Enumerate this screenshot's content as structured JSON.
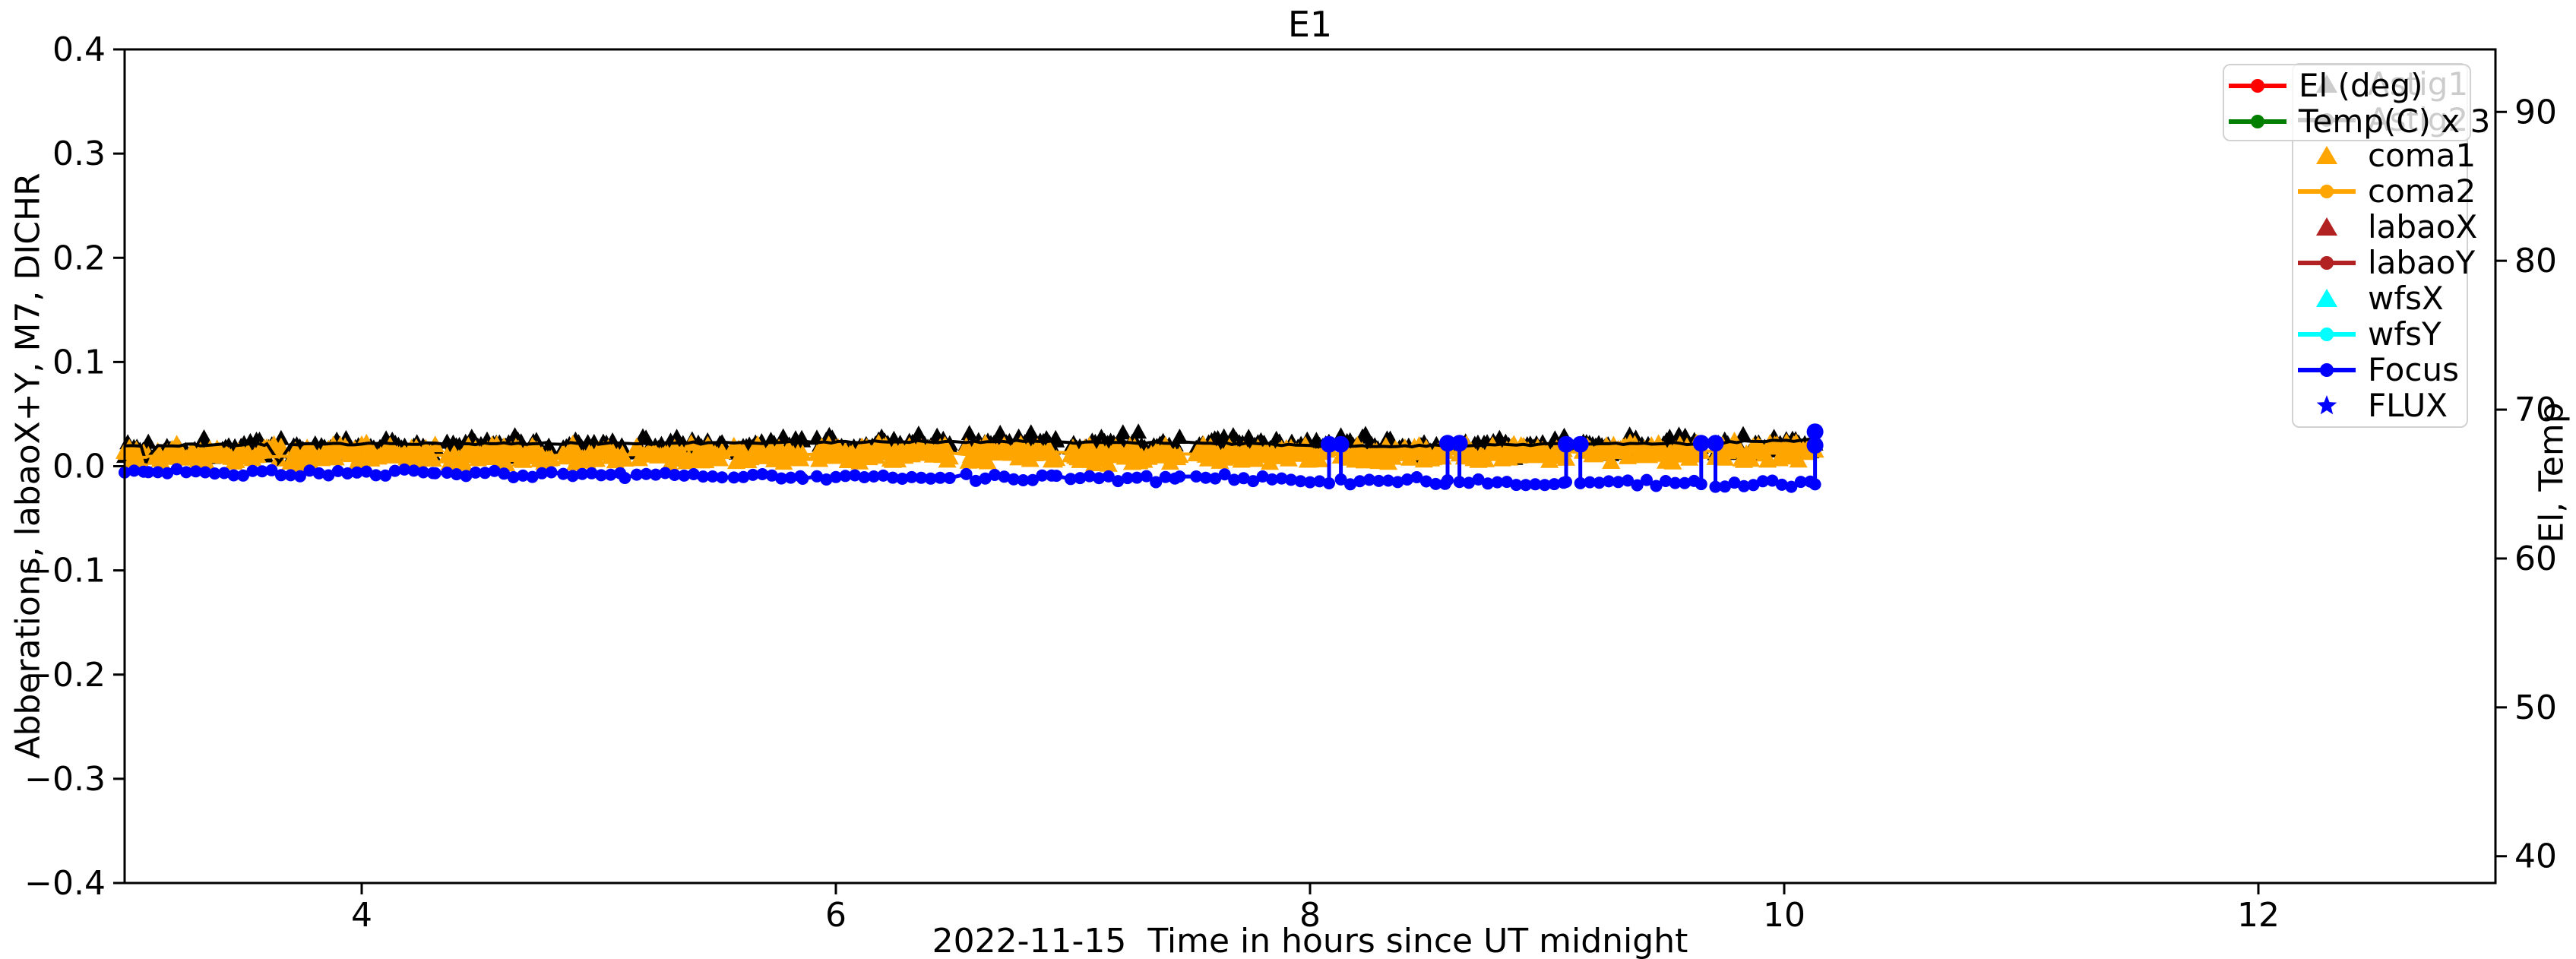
{
  "window_title": "E1",
  "chart_data": {
    "type": "line+scatter",
    "title": "E1",
    "xlabel": "2022-11-15  Time in hours since UT midnight",
    "ylabel_left": "Abberations, labaoX+Y, M7, DICHR",
    "ylabel_right": "El, Temp",
    "xlim": [
      3,
      13
    ],
    "x_ticks": [
      4,
      6,
      8,
      10,
      12
    ],
    "ylim_left": [
      -0.4,
      0.4
    ],
    "y_ticks_left": [
      -0.4,
      -0.3,
      -0.2,
      -0.1,
      0.0,
      0.1,
      0.2,
      0.3,
      0.4
    ],
    "ylim_right": [
      38.2,
      94.2
    ],
    "y_ticks_right": [
      40,
      50,
      60,
      70,
      80,
      90
    ],
    "grid": false,
    "background": "#ffffff",
    "axis_color": "#000000",
    "noise_seed": 1337,
    "data_blocks": [
      [
        3.0,
        3.1
      ],
      [
        3.14,
        3.66
      ],
      [
        3.7,
        4.31
      ],
      [
        4.36,
        4.8
      ],
      [
        4.85,
        5.11
      ],
      [
        5.16,
        5.52
      ],
      [
        5.57,
        5.86
      ],
      [
        5.92,
        6.48
      ],
      [
        6.55,
        6.93
      ],
      [
        6.99,
        7.45
      ],
      [
        7.52,
        8.08
      ],
      [
        8.13,
        8.58
      ],
      [
        8.63,
        9.08
      ],
      [
        9.14,
        9.65
      ],
      [
        9.71,
        10.13
      ]
    ],
    "series": [
      {
        "name": "Astig1",
        "color": "#000000",
        "render": "scatter-triangle",
        "marker_half": 11,
        "step": 0.013,
        "amp": 0.012,
        "anchors": [
          [
            3.0,
            0.018
          ],
          [
            4.0,
            0.019
          ],
          [
            5.0,
            0.02
          ],
          [
            6.0,
            0.021
          ],
          [
            6.9,
            0.024
          ],
          [
            7.7,
            0.021
          ],
          [
            8.6,
            0.019
          ],
          [
            9.4,
            0.021
          ],
          [
            10.13,
            0.024
          ]
        ]
      },
      {
        "name": "coma1",
        "color": "#FFA500",
        "render": "scatter-triangle",
        "marker_half": 12,
        "step": 0.01,
        "amp": 0.011,
        "anchors": [
          [
            3.0,
            0.012
          ],
          [
            4.5,
            0.013
          ],
          [
            6.0,
            0.014
          ],
          [
            7.5,
            0.013
          ],
          [
            9.0,
            0.014
          ],
          [
            10.13,
            0.016
          ]
        ]
      },
      {
        "name": "Astig2",
        "color": "#000000",
        "render": "line",
        "line_width": 4,
        "step": 0.03,
        "amp": 0.0015,
        "anchors": [
          [
            3.0,
            0.02
          ],
          [
            3.07,
            0.019
          ],
          [
            3.09,
            0.004
          ],
          [
            3.12,
            0.02
          ],
          [
            3.6,
            0.021
          ],
          [
            3.65,
            0.004
          ],
          [
            3.7,
            0.021
          ],
          [
            4.3,
            0.022
          ],
          [
            5.0,
            0.022
          ],
          [
            5.9,
            0.023
          ],
          [
            6.5,
            0.024
          ],
          [
            7.0,
            0.023
          ],
          [
            7.7,
            0.022
          ],
          [
            8.1,
            0.019
          ],
          [
            8.6,
            0.02
          ],
          [
            9.1,
            0.021
          ],
          [
            9.7,
            0.022
          ],
          [
            10.13,
            0.026
          ]
        ]
      },
      {
        "name": "coma2",
        "color": "#FFA500",
        "render": "line",
        "line_width": 4,
        "step": 0.03,
        "amp": 0.0015,
        "anchors": [
          [
            3.0,
            0.009
          ],
          [
            4.0,
            0.01
          ],
          [
            5.0,
            0.011
          ],
          [
            6.0,
            0.012
          ],
          [
            7.0,
            0.012
          ],
          [
            8.0,
            0.012
          ],
          [
            9.0,
            0.013
          ],
          [
            10.13,
            0.015
          ]
        ]
      },
      {
        "name": "Focus",
        "color": "#0000FF",
        "render": "line-dot",
        "line_width": 5,
        "dot_radius": 8,
        "step": 0.04,
        "amp": 0.0045,
        "anchors": [
          [
            3.0,
            -0.004
          ],
          [
            3.5,
            -0.006
          ],
          [
            4.5,
            -0.007
          ],
          [
            5.5,
            -0.009
          ],
          [
            6.5,
            -0.011
          ],
          [
            7.5,
            -0.011
          ],
          [
            8.13,
            -0.014
          ],
          [
            9.0,
            -0.016
          ],
          [
            9.7,
            -0.017
          ],
          [
            10.13,
            -0.017
          ]
        ],
        "spikes": [
          {
            "x": 8.08,
            "top": 0.021
          },
          {
            "x": 8.58,
            "top": 0.022
          },
          {
            "x": 9.08,
            "top": 0.021
          },
          {
            "x": 9.65,
            "top": 0.022
          },
          {
            "x": 10.13,
            "top": 0.033,
            "mid": 0.02
          }
        ]
      }
    ],
    "legend_overlay": {
      "entries": [
        {
          "label": "El (deg)",
          "color": "#FF0000",
          "marker": "line-dot"
        },
        {
          "label": "Temp(C) x 3",
          "color": "#007F00",
          "marker": "line-dot"
        }
      ]
    },
    "legend_main": {
      "entries": [
        {
          "label": "Astig1",
          "color": "#000000",
          "marker": "triangle"
        },
        {
          "label": "Astig2",
          "color": "#000000",
          "marker": "line-dot"
        },
        {
          "label": "coma1",
          "color": "#FFA500",
          "marker": "triangle"
        },
        {
          "label": "coma2",
          "color": "#FFA500",
          "marker": "line-dot"
        },
        {
          "label": "labaoX",
          "color": "#B22222",
          "marker": "triangle"
        },
        {
          "label": "labaoY",
          "color": "#B22222",
          "marker": "line-dot"
        },
        {
          "label": "wfsX",
          "color": "#00FFFF",
          "marker": "triangle"
        },
        {
          "label": "wfsY",
          "color": "#00FFFF",
          "marker": "line-dot"
        },
        {
          "label": "Focus",
          "color": "#0000FF",
          "marker": "line-dot"
        },
        {
          "label": "FLUX",
          "color": "#0000FF",
          "marker": "star"
        }
      ]
    },
    "layout": {
      "plot_left": 164,
      "plot_top": 65,
      "plot_right": 3284,
      "plot_bottom": 1162,
      "tick_len": 15,
      "tick_width": 3,
      "spine_width": 3,
      "tick_font": 44
    }
  }
}
